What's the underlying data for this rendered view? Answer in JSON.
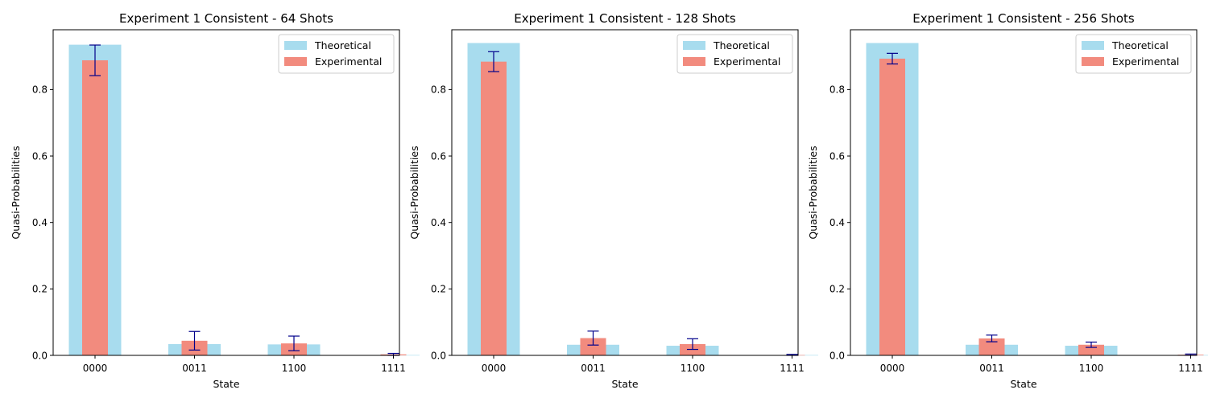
{
  "chart_data": [
    {
      "type": "bar",
      "title": "Experiment 1 Consistent - 64 Shots",
      "xlabel": "State",
      "ylabel": "Quasi-Probabilities",
      "categories": [
        "0000",
        "0011",
        "1100",
        "1111"
      ],
      "ylim": [
        0,
        0.98
      ],
      "yticks": [
        "0.0",
        "0.2",
        "0.4",
        "0.6",
        "0.8"
      ],
      "legend_position": "top-right",
      "series": [
        {
          "name": "Theoretical",
          "color": "#a8dcee",
          "values": [
            0.935,
            0.034,
            0.033,
            0.001
          ]
        },
        {
          "name": "Experimental",
          "color": "#f28b7e",
          "values": [
            0.888,
            0.044,
            0.036,
            0.003
          ],
          "errors": [
            0.046,
            0.028,
            0.022,
            0.003
          ],
          "error_color": "#00008b"
        }
      ]
    },
    {
      "type": "bar",
      "title": "Experiment 1 Consistent - 128 Shots",
      "xlabel": "State",
      "ylabel": "Quasi-Probabilities",
      "categories": [
        "0000",
        "0011",
        "1100",
        "1111"
      ],
      "ylim": [
        0,
        0.98
      ],
      "yticks": [
        "0.0",
        "0.2",
        "0.4",
        "0.6",
        "0.8"
      ],
      "legend_position": "top-right",
      "series": [
        {
          "name": "Theoretical",
          "color": "#a8dcee",
          "values": [
            0.94,
            0.032,
            0.029,
            0.001
          ]
        },
        {
          "name": "Experimental",
          "color": "#f28b7e",
          "values": [
            0.884,
            0.052,
            0.034,
            0.001
          ],
          "errors": [
            0.03,
            0.021,
            0.016,
            0.002
          ],
          "error_color": "#00008b"
        }
      ]
    },
    {
      "type": "bar",
      "title": "Experiment 1 Consistent - 256 Shots",
      "xlabel": "State",
      "ylabel": "Quasi-Probabilities",
      "categories": [
        "0000",
        "0011",
        "1100",
        "1111"
      ],
      "ylim": [
        0,
        0.98
      ],
      "yticks": [
        "0.0",
        "0.2",
        "0.4",
        "0.6",
        "0.8"
      ],
      "legend_position": "top-right",
      "series": [
        {
          "name": "Theoretical",
          "color": "#a8dcee",
          "values": [
            0.94,
            0.032,
            0.029,
            0.001
          ]
        },
        {
          "name": "Experimental",
          "color": "#f28b7e",
          "values": [
            0.893,
            0.051,
            0.032,
            0.002
          ],
          "errors": [
            0.016,
            0.01,
            0.008,
            0.002
          ],
          "error_color": "#00008b"
        }
      ]
    }
  ]
}
